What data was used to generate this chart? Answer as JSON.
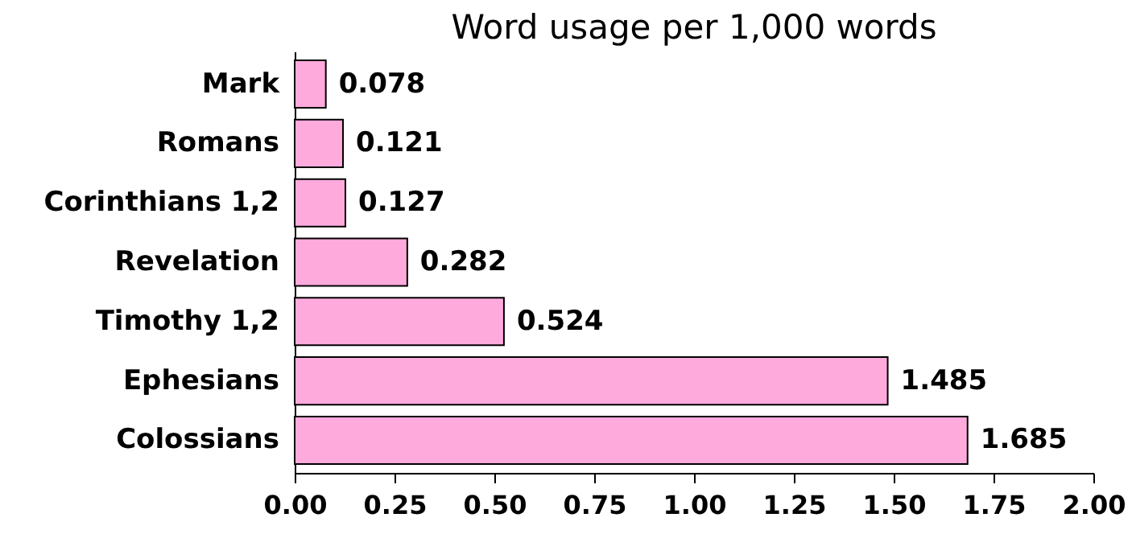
{
  "chart_data": {
    "type": "bar",
    "orientation": "horizontal",
    "title": "Word usage per 1,000 words",
    "categories": [
      "Mark",
      "Romans",
      "Corinthians 1,2",
      "Revelation",
      "Timothy 1,2",
      "Ephesians",
      "Colossians"
    ],
    "values": [
      0.078,
      0.121,
      0.127,
      0.282,
      0.524,
      1.485,
      1.685
    ],
    "color": "#ffaadd",
    "data_labels": true,
    "grid": false,
    "xlim": [
      0,
      2
    ],
    "xticks": [
      {
        "value": 0,
        "label": "0.00"
      },
      {
        "value": 0.25,
        "label": "0.25"
      },
      {
        "value": 0.5,
        "label": "0.50"
      },
      {
        "value": 0.75,
        "label": "0.75"
      },
      {
        "value": 1,
        "label": "1.00"
      },
      {
        "value": 1.25,
        "label": "1.25"
      },
      {
        "value": 1.5,
        "label": "1.50"
      },
      {
        "value": 1.75,
        "label": "1.75"
      },
      {
        "value": 2,
        "label": "2.00"
      }
    ]
  }
}
